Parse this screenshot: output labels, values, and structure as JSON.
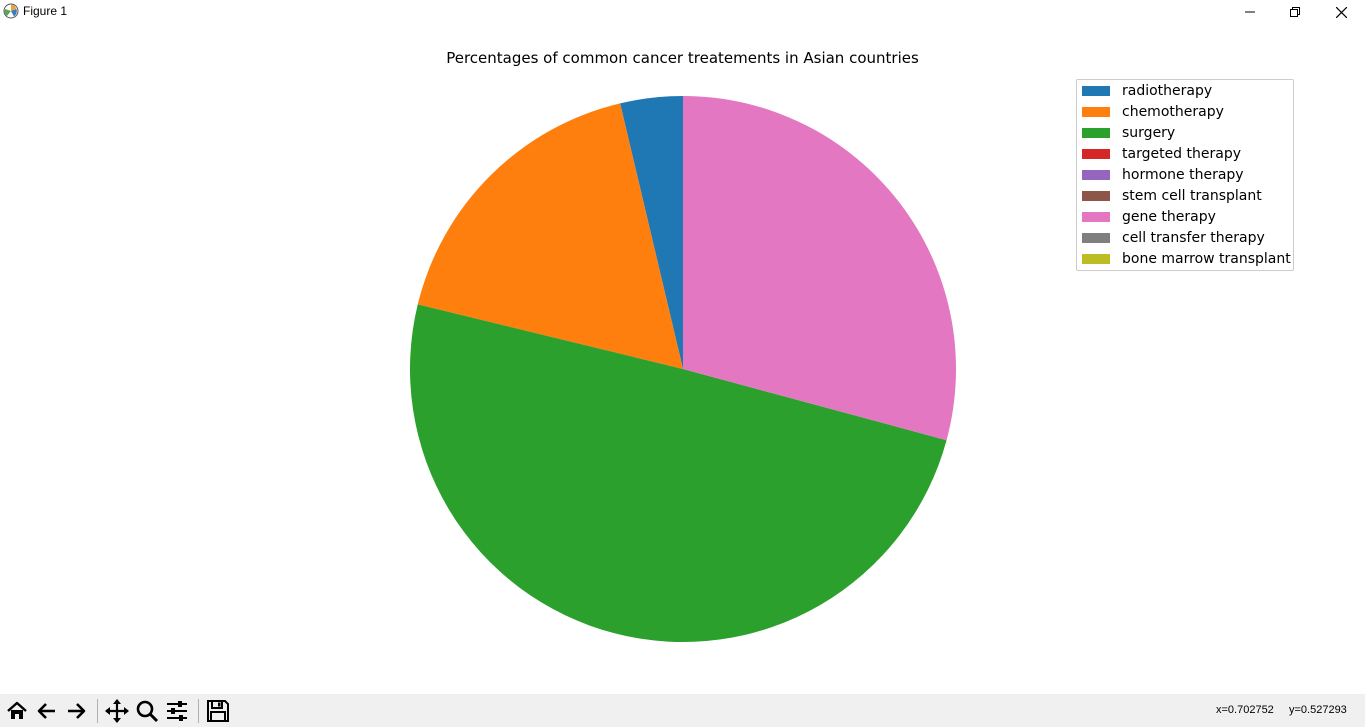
{
  "window": {
    "title": "Figure 1"
  },
  "chart_data": {
    "type": "pie",
    "title": "Percentages of common cancer treatements in Asian countries",
    "categories": [
      "radiotherapy",
      "chemotherapy",
      "surgery",
      "targeted therapy",
      "hormone therapy",
      "stem cell transplant",
      "gene therapy",
      "cell transfer therapy",
      "bone marrow transplant"
    ],
    "values": [
      3.7,
      17.5,
      49.6,
      0,
      0,
      0,
      29.2,
      0,
      0
    ],
    "colors": [
      "#1f77b4",
      "#ff7f0e",
      "#2ca02c",
      "#d62728",
      "#9467bd",
      "#8c564b",
      "#e377c2",
      "#7f7f7f",
      "#bcbd22"
    ],
    "startangle": 90,
    "direction": "counterclockwise",
    "legend_placement": "top-right"
  },
  "toolbar": {
    "buttons": [
      "home-icon",
      "back-icon",
      "forward-icon",
      "pan-icon",
      "zoom-icon",
      "configure-subplots-icon",
      "save-icon"
    ],
    "coords_x": "x=0.702752",
    "coords_y": "y=0.527293"
  }
}
